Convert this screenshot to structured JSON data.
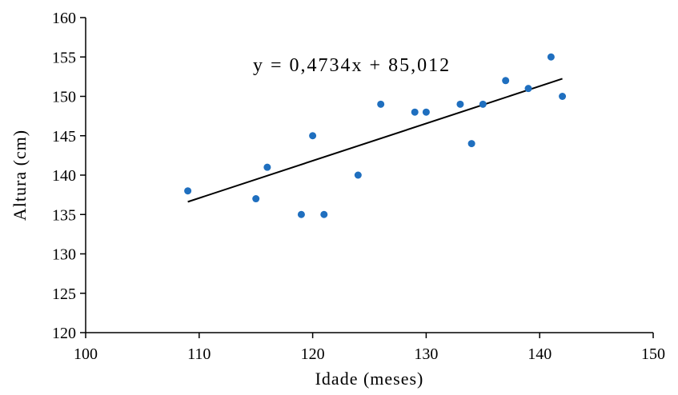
{
  "chart_data": {
    "type": "scatter",
    "xlabel": "Idade (meses)",
    "ylabel": "Altura (cm)",
    "xlim": [
      100,
      150
    ],
    "ylim": [
      120,
      160
    ],
    "x_ticks": [
      100,
      110,
      120,
      130,
      140,
      150
    ],
    "y_ticks": [
      120,
      125,
      130,
      135,
      140,
      145,
      150,
      155,
      160
    ],
    "grid": false,
    "point_color": "#1F6FBF",
    "trendline_color": "#000000",
    "series": [
      {
        "points": [
          {
            "x": 109,
            "y": 138
          },
          {
            "x": 115,
            "y": 137
          },
          {
            "x": 116,
            "y": 141
          },
          {
            "x": 119,
            "y": 135
          },
          {
            "x": 120,
            "y": 145
          },
          {
            "x": 121,
            "y": 135
          },
          {
            "x": 124,
            "y": 140
          },
          {
            "x": 126,
            "y": 149
          },
          {
            "x": 129,
            "y": 148
          },
          {
            "x": 130,
            "y": 148
          },
          {
            "x": 133,
            "y": 149
          },
          {
            "x": 134,
            "y": 144
          },
          {
            "x": 135,
            "y": 149
          },
          {
            "x": 137,
            "y": 152
          },
          {
            "x": 139,
            "y": 151
          },
          {
            "x": 141,
            "y": 155
          },
          {
            "x": 142,
            "y": 150
          }
        ]
      }
    ],
    "trendline": {
      "slope": 0.4734,
      "intercept": 85.012,
      "x_range": [
        109,
        142
      ],
      "equation_label": "y = 0,4734x + 85,012"
    }
  }
}
